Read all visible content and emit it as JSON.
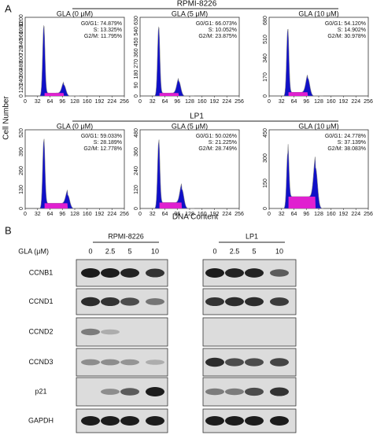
{
  "panel_a": {
    "label": "A",
    "y_axis_label": "Cell Number",
    "x_axis_label": "DNA Content",
    "xticks": [
      "0",
      "32",
      "64",
      "96",
      "128",
      "160",
      "192",
      "224",
      "256"
    ],
    "groups": [
      {
        "title": "RPMI-8226",
        "plots": [
          {
            "title": "GLA (0 μM)",
            "stats": [
              "G0/G1: 74.879%",
              "S: 13.325%",
              "G2/M: 11.795%"
            ],
            "yticks": [
              "0",
              "120",
              "240",
              "360",
              "480",
              "600",
              "720",
              "840",
              "960",
              "1080",
              "1200"
            ]
          },
          {
            "title": "GLA (5 μM)",
            "stats": [
              "G0/G1: 66.073%",
              "S: 10.052%",
              "G2/M: 23.875%"
            ],
            "yticks": [
              "0",
              "90",
              "180",
              "270",
              "360",
              "450",
              "540",
              "630"
            ]
          },
          {
            "title": "GLA (10 μM)",
            "stats": [
              "G0/G1: 54.120%",
              "S: 14.902%",
              "G2/M: 30.978%"
            ],
            "yticks": [
              "0",
              "170",
              "340",
              "510",
              "680"
            ]
          }
        ]
      },
      {
        "title": "LP1",
        "plots": [
          {
            "title": "GLA (0 μM)",
            "stats": [
              "G0/G1: 59.033%",
              "S: 28.189%",
              "G2/M: 12.778%"
            ],
            "yticks": [
              "0",
              "130",
              "260",
              "390",
              "520"
            ]
          },
          {
            "title": "GLA (5 μM)",
            "stats": [
              "G0/G1: 50.026%",
              "S: 21.225%",
              "G2/M: 28.749%"
            ],
            "yticks": [
              "0",
              "120",
              "240",
              "360",
              "480"
            ]
          },
          {
            "title": "GLA (10 μM)",
            "stats": [
              "G0/G1: 24.778%",
              "S: 37.139%",
              "G2/M: 38.083%"
            ],
            "yticks": [
              "0",
              "150",
              "300",
              "450"
            ]
          }
        ]
      }
    ]
  },
  "panel_b": {
    "label": "B",
    "dose_label": "GLA (μM)",
    "groups": [
      {
        "title": "RPMI-8226",
        "lanes": [
          "0",
          "2.5",
          "5",
          "10"
        ]
      },
      {
        "title": "LP1",
        "lanes": [
          "0",
          "2.5",
          "5",
          "10"
        ]
      }
    ],
    "proteins": [
      "CCNB1",
      "CCND1",
      "CCND2",
      "CCND3",
      "p21",
      "GAPDH"
    ]
  }
}
